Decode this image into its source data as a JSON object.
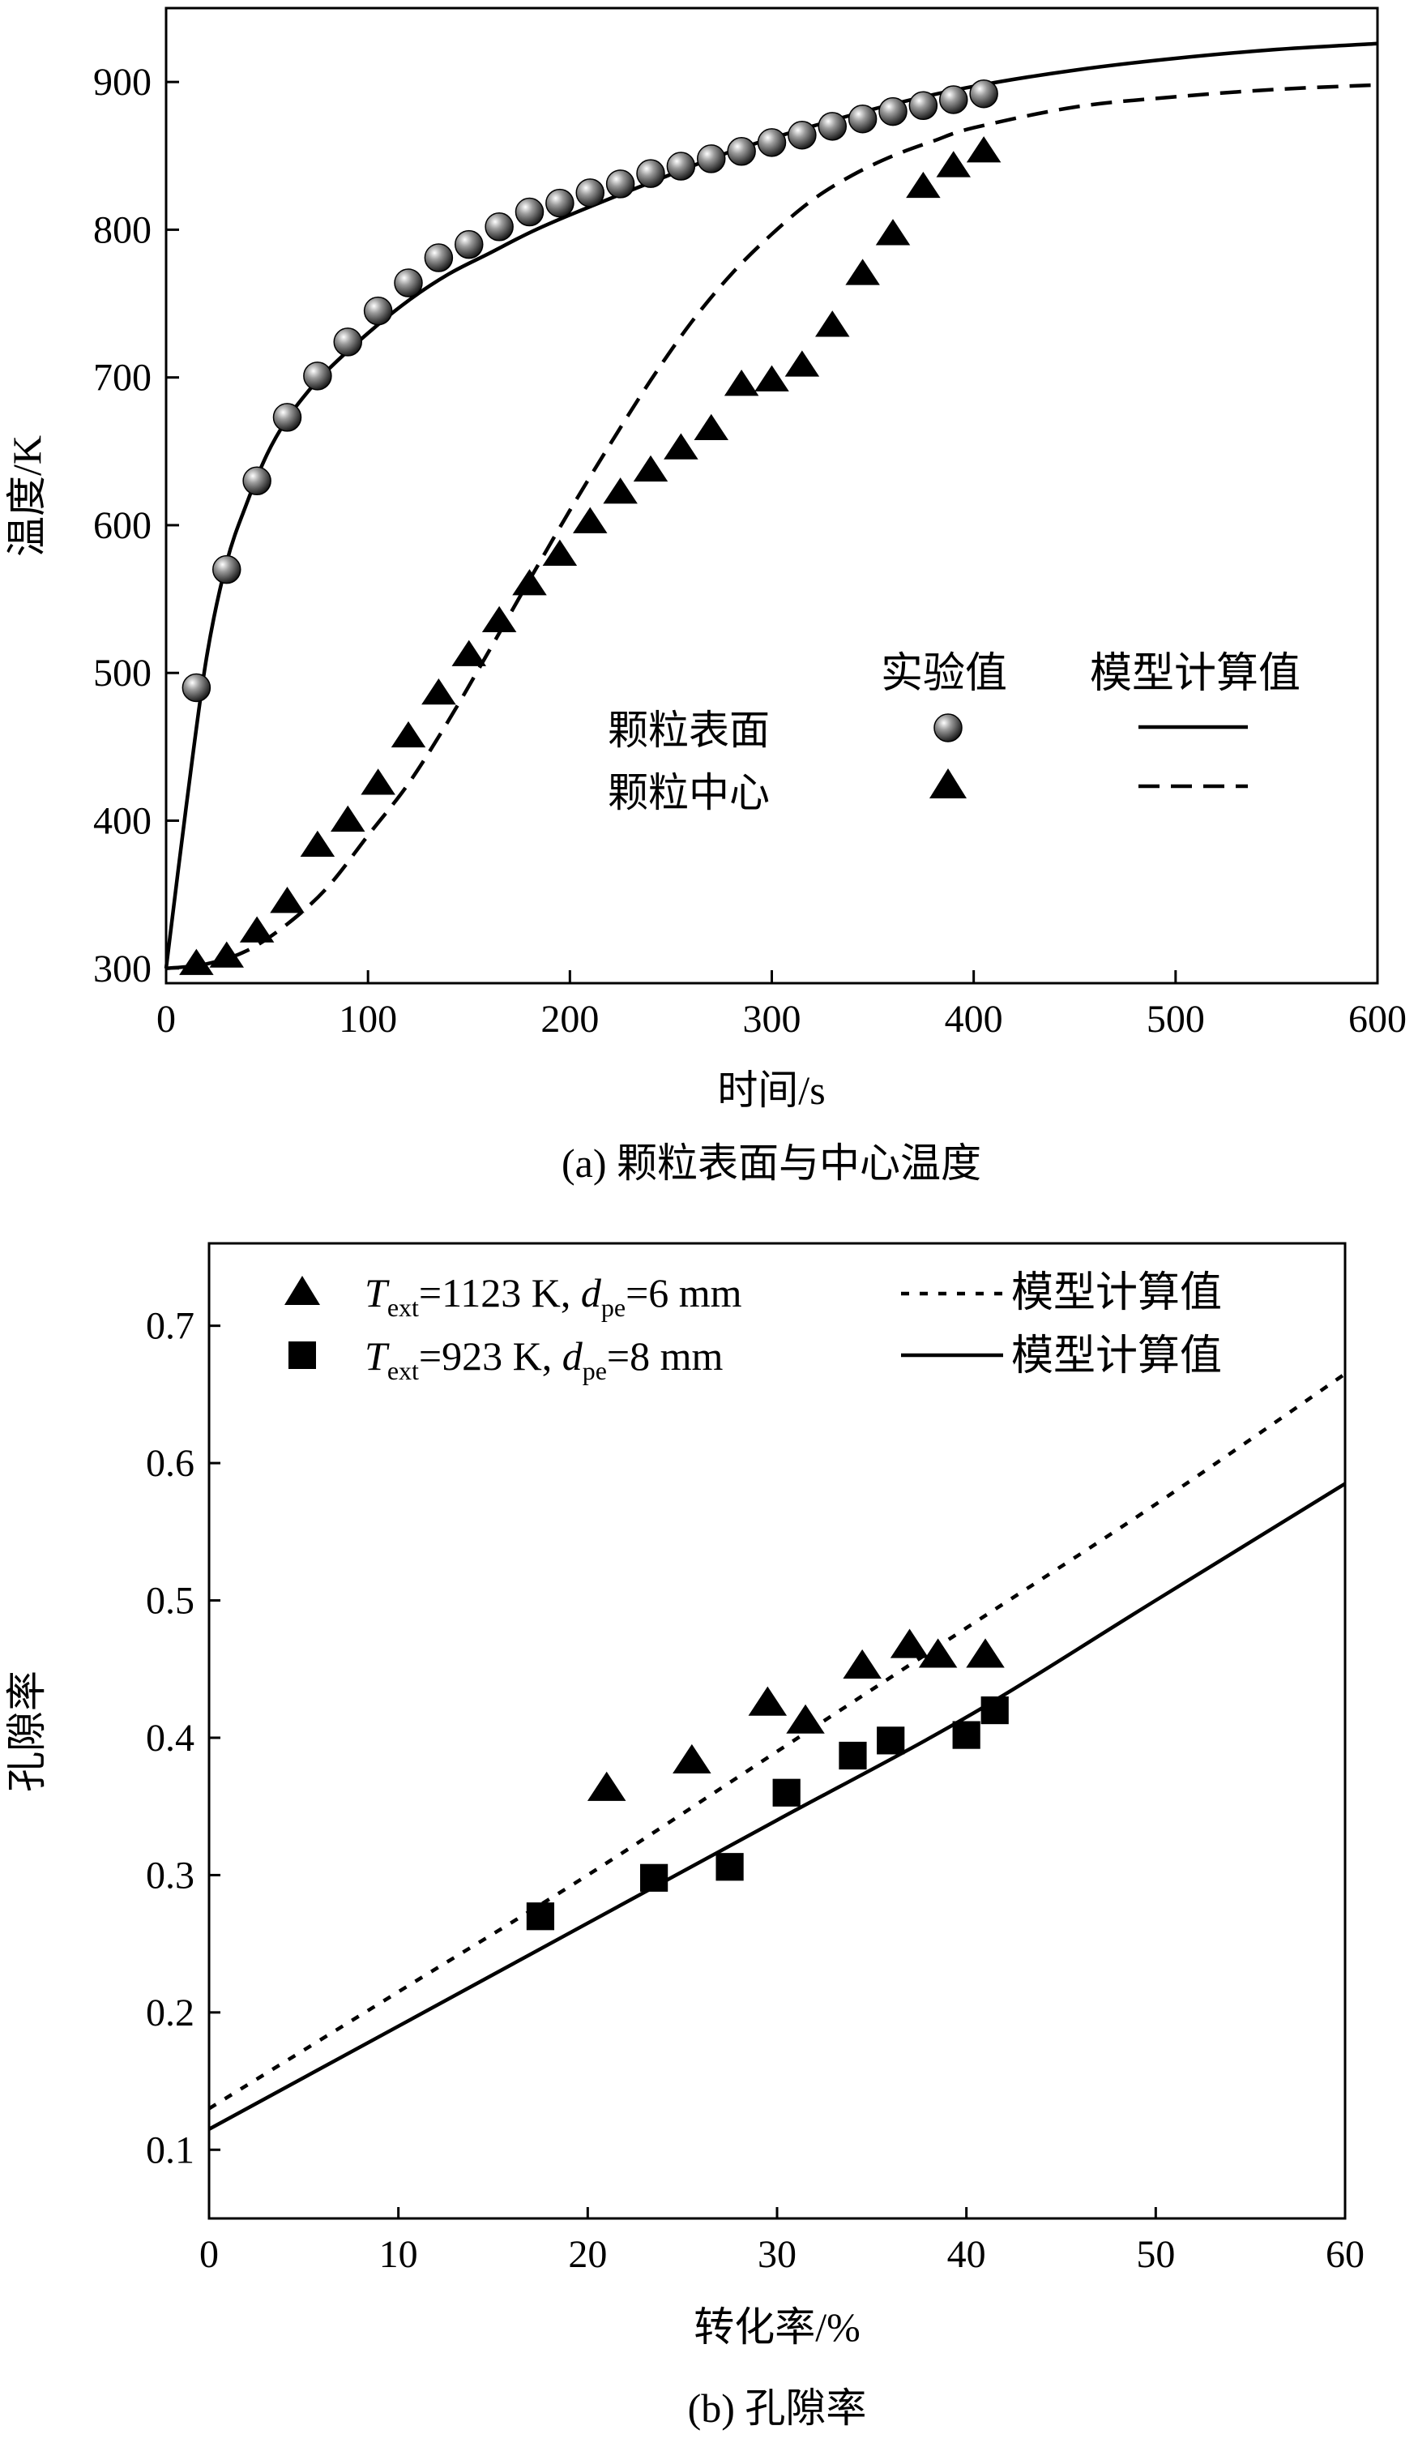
{
  "chart_data": [
    {
      "type": "scatter",
      "caption": "(a) 颗粒表面与中心温度",
      "xlabel": "时间/s",
      "ylabel": "温度/K",
      "xlim": [
        0,
        600
      ],
      "ylim": [
        290,
        950
      ],
      "xticks": [
        0,
        100,
        200,
        300,
        400,
        500,
        600
      ],
      "yticks": [
        300,
        400,
        500,
        600,
        700,
        800,
        900
      ],
      "legend": {
        "position": "center-right",
        "col_headers": [
          "实验值",
          "模型计算值"
        ],
        "rows": [
          "颗粒表面",
          "颗粒中心"
        ]
      },
      "series": [
        {
          "name": "颗粒表面 实验值",
          "marker": "sphere",
          "x": [
            15,
            30,
            45,
            60,
            75,
            90,
            105,
            120,
            135,
            150,
            165,
            180,
            195,
            210,
            225,
            240,
            255,
            270,
            285,
            300,
            315,
            330,
            345,
            360,
            375,
            390,
            405
          ],
          "y": [
            490,
            570,
            630,
            673,
            701,
            724,
            745,
            764,
            781,
            790,
            802,
            812,
            818,
            825,
            831,
            838,
            843,
            848,
            853,
            859,
            864,
            870,
            875,
            880,
            884,
            888,
            892
          ]
        },
        {
          "name": "颗粒中心 实验值",
          "marker": "triangle",
          "x": [
            15,
            30,
            45,
            60,
            75,
            90,
            105,
            120,
            135,
            150,
            165,
            180,
            195,
            210,
            225,
            240,
            255,
            270,
            285,
            300,
            315,
            330,
            345,
            360,
            375,
            390,
            405
          ],
          "y": [
            303,
            308,
            325,
            345,
            383,
            400,
            425,
            457,
            486,
            512,
            535,
            560,
            580,
            602,
            622,
            637,
            652,
            665,
            695,
            698,
            708,
            735,
            770,
            797,
            829,
            843,
            853
          ]
        },
        {
          "name": "颗粒表面 模型计算值",
          "style": "solid",
          "x": [
            0,
            10,
            20,
            30,
            40,
            50,
            60,
            70,
            80,
            100,
            120,
            140,
            160,
            180,
            200,
            240,
            280,
            320,
            360,
            400,
            450,
            500,
            550,
            600
          ],
          "y": [
            300,
            410,
            510,
            575,
            615,
            648,
            672,
            690,
            705,
            730,
            752,
            770,
            784,
            798,
            810,
            832,
            853,
            870,
            885,
            897,
            908,
            916,
            922,
            926
          ]
        },
        {
          "name": "颗粒中心 模型计算值",
          "style": "dashed",
          "x": [
            0,
            20,
            40,
            60,
            80,
            100,
            120,
            140,
            160,
            180,
            200,
            220,
            240,
            260,
            280,
            300,
            320,
            340,
            360,
            380,
            400,
            450,
            500,
            550,
            600
          ],
          "y": [
            300,
            303,
            312,
            330,
            355,
            390,
            425,
            468,
            515,
            563,
            610,
            655,
            698,
            737,
            770,
            797,
            820,
            837,
            850,
            860,
            869,
            883,
            890,
            895,
            898
          ]
        }
      ]
    },
    {
      "type": "scatter",
      "caption": "(b) 孔隙率",
      "xlabel": "转化率/%",
      "ylabel": "孔隙率",
      "xlim": [
        0,
        60
      ],
      "ylim": [
        0.05,
        0.76
      ],
      "xticks": [
        0,
        10,
        20,
        30,
        40,
        50,
        60
      ],
      "yticks": [
        "0.1",
        "0.2",
        "0.3",
        "0.4",
        "0.5",
        "0.6",
        "0.7"
      ],
      "legend": {
        "position": "top",
        "entries": [
          {
            "T": "T",
            "Tsub": "ext",
            "t1": "=1123 K, ",
            "d": "d",
            "dsub": "pe",
            "t2": "=6 mm",
            "model_label": "模型计算值"
          },
          {
            "T": "T",
            "Tsub": "ext",
            "t1": "=923 K, ",
            "d": "d",
            "dsub": "pe",
            "t2": "=8 mm",
            "model_label": "模型计算值"
          }
        ]
      },
      "series": [
        {
          "name": "Text=1123 K, dpe=6 mm 实验值",
          "marker": "triangle",
          "x": [
            21,
            25.5,
            29.5,
            31.5,
            34.5,
            37,
            38.5,
            41
          ],
          "y": [
            0.363,
            0.383,
            0.425,
            0.412,
            0.452,
            0.467,
            0.46,
            0.46
          ]
        },
        {
          "name": "Text=923 K, dpe=8 mm 实验值",
          "marker": "square",
          "x": [
            17.5,
            23.5,
            27.5,
            30.5,
            34,
            36,
            40,
            41.5
          ],
          "y": [
            0.27,
            0.298,
            0.306,
            0.36,
            0.387,
            0.398,
            0.402,
            0.42
          ]
        },
        {
          "name": "模型计算值 (1123 K)",
          "style": "dotted",
          "x": [
            0,
            10,
            20,
            30,
            40,
            50,
            60
          ],
          "y": [
            0.13,
            0.215,
            0.3,
            0.39,
            0.48,
            0.57,
            0.665
          ]
        },
        {
          "name": "模型计算值 (923 K)",
          "style": "solid",
          "x": [
            0,
            10,
            20,
            30,
            40,
            50,
            60
          ],
          "y": [
            0.115,
            0.19,
            0.265,
            0.34,
            0.415,
            0.5,
            0.585
          ]
        }
      ]
    }
  ]
}
